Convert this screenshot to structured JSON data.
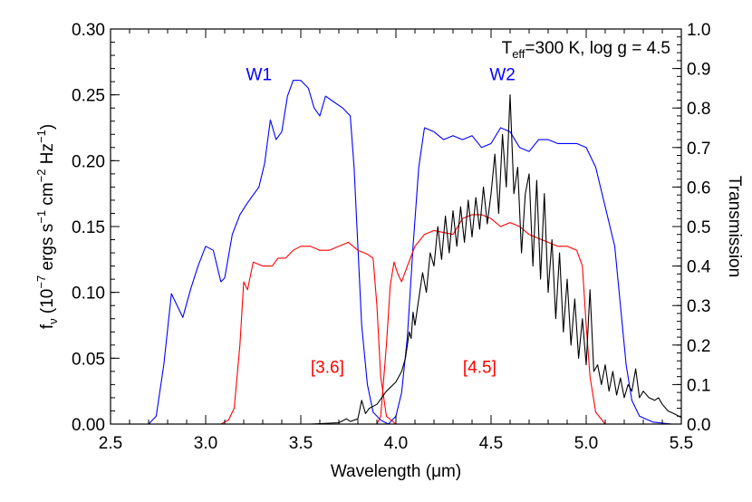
{
  "chart_data": {
    "type": "line",
    "title": "",
    "annotation": {
      "prefix": "T",
      "subscript": "eff",
      "rest": "=300 K, log g = 4.5"
    },
    "xlabel": "Wavelength (μm)",
    "ylabel": {
      "main": "f",
      "sub": "ν",
      "text": " (10",
      "exp1": "−7",
      "mid1": " ergs s",
      "exp2": "−1",
      "mid2": " cm",
      "exp3": "−2",
      "mid3": " Hz",
      "exp4": "−1",
      "end": ")"
    },
    "y2label": "Transmission",
    "xlim": [
      2.5,
      5.5
    ],
    "ylim": [
      0,
      0.3
    ],
    "y2lim": [
      0,
      1.0
    ],
    "x_ticks": [
      "2.5",
      "3.0",
      "3.5",
      "4.0",
      "4.5",
      "5.0",
      "5.5"
    ],
    "y_ticks": [
      "0.00",
      "0.05",
      "0.10",
      "0.15",
      "0.20",
      "0.25",
      "0.30"
    ],
    "y2_ticks": [
      "0.0",
      "0.1",
      "0.2",
      "0.3",
      "0.4",
      "0.5",
      "0.6",
      "0.7",
      "0.8",
      "0.9",
      "1.0"
    ],
    "grid": false,
    "colors": {
      "wise": "#0000ff",
      "irac": "#ff0000",
      "spectrum": "#000000"
    },
    "series": [
      {
        "name": "W1",
        "axis": "right",
        "color": "#0000ff",
        "label_at": [
          3.28,
          0.87
        ],
        "points": [
          [
            2.6,
            0
          ],
          [
            2.7,
            0
          ],
          [
            2.74,
            0.02
          ],
          [
            2.78,
            0.15
          ],
          [
            2.82,
            0.33
          ],
          [
            2.85,
            0.3
          ],
          [
            2.88,
            0.27
          ],
          [
            2.92,
            0.34
          ],
          [
            2.96,
            0.4
          ],
          [
            3.0,
            0.45
          ],
          [
            3.04,
            0.44
          ],
          [
            3.08,
            0.36
          ],
          [
            3.1,
            0.37
          ],
          [
            3.14,
            0.48
          ],
          [
            3.18,
            0.53
          ],
          [
            3.22,
            0.56
          ],
          [
            3.25,
            0.58
          ],
          [
            3.28,
            0.6
          ],
          [
            3.31,
            0.66
          ],
          [
            3.34,
            0.77
          ],
          [
            3.37,
            0.72
          ],
          [
            3.4,
            0.74
          ],
          [
            3.43,
            0.83
          ],
          [
            3.46,
            0.87
          ],
          [
            3.5,
            0.87
          ],
          [
            3.54,
            0.85
          ],
          [
            3.57,
            0.8
          ],
          [
            3.6,
            0.78
          ],
          [
            3.63,
            0.83
          ],
          [
            3.66,
            0.82
          ],
          [
            3.72,
            0.8
          ],
          [
            3.76,
            0.78
          ],
          [
            3.78,
            0.65
          ],
          [
            3.8,
            0.45
          ],
          [
            3.82,
            0.25
          ],
          [
            3.85,
            0.1
          ],
          [
            3.88,
            0.03
          ],
          [
            3.92,
            0.01
          ],
          [
            3.96,
            0
          ]
        ]
      },
      {
        "name": "W2",
        "axis": "right",
        "color": "#0000ff",
        "label_at": [
          4.56,
          0.87
        ],
        "points": [
          [
            3.96,
            0
          ],
          [
            4.0,
            0.02
          ],
          [
            4.03,
            0.08
          ],
          [
            4.06,
            0.22
          ],
          [
            4.09,
            0.45
          ],
          [
            4.12,
            0.65
          ],
          [
            4.15,
            0.75
          ],
          [
            4.2,
            0.74
          ],
          [
            4.25,
            0.72
          ],
          [
            4.3,
            0.73
          ],
          [
            4.35,
            0.72
          ],
          [
            4.4,
            0.73
          ],
          [
            4.45,
            0.7
          ],
          [
            4.5,
            0.71
          ],
          [
            4.55,
            0.75
          ],
          [
            4.6,
            0.74
          ],
          [
            4.65,
            0.7
          ],
          [
            4.7,
            0.69
          ],
          [
            4.75,
            0.72
          ],
          [
            4.8,
            0.72
          ],
          [
            4.85,
            0.71
          ],
          [
            4.9,
            0.71
          ],
          [
            4.95,
            0.71
          ],
          [
            5.0,
            0.7
          ],
          [
            5.05,
            0.65
          ],
          [
            5.1,
            0.55
          ],
          [
            5.15,
            0.45
          ],
          [
            5.18,
            0.3
          ],
          [
            5.21,
            0.15
          ],
          [
            5.24,
            0.06
          ],
          [
            5.28,
            0.02
          ],
          [
            5.35,
            0.005
          ],
          [
            5.45,
            0
          ]
        ]
      },
      {
        "name": "[3.6]",
        "axis": "right",
        "color": "#ff0000",
        "label_at": [
          3.64,
          0.13
        ],
        "points": [
          [
            3.0,
            0
          ],
          [
            3.08,
            0
          ],
          [
            3.12,
            0.01
          ],
          [
            3.15,
            0.04
          ],
          [
            3.18,
            0.2
          ],
          [
            3.2,
            0.36
          ],
          [
            3.22,
            0.34
          ],
          [
            3.25,
            0.41
          ],
          [
            3.3,
            0.4
          ],
          [
            3.35,
            0.4
          ],
          [
            3.38,
            0.42
          ],
          [
            3.42,
            0.42
          ],
          [
            3.46,
            0.44
          ],
          [
            3.5,
            0.45
          ],
          [
            3.55,
            0.45
          ],
          [
            3.6,
            0.44
          ],
          [
            3.65,
            0.44
          ],
          [
            3.7,
            0.45
          ],
          [
            3.75,
            0.46
          ],
          [
            3.8,
            0.44
          ],
          [
            3.85,
            0.43
          ],
          [
            3.88,
            0.42
          ],
          [
            3.9,
            0.3
          ],
          [
            3.92,
            0.12
          ],
          [
            3.95,
            0.02
          ],
          [
            4.0,
            0
          ]
        ]
      },
      {
        "name": "[4.5]",
        "axis": "right",
        "color": "#ff0000",
        "label_at": [
          4.44,
          0.13
        ],
        "points": [
          [
            3.9,
            0
          ],
          [
            3.92,
            0.02
          ],
          [
            3.95,
            0.2
          ],
          [
            3.97,
            0.35
          ],
          [
            3.99,
            0.41
          ],
          [
            4.01,
            0.38
          ],
          [
            4.03,
            0.36
          ],
          [
            4.06,
            0.4
          ],
          [
            4.1,
            0.45
          ],
          [
            4.15,
            0.48
          ],
          [
            4.2,
            0.49
          ],
          [
            4.3,
            0.48
          ],
          [
            4.35,
            0.52
          ],
          [
            4.4,
            0.53
          ],
          [
            4.45,
            0.53
          ],
          [
            4.5,
            0.52
          ],
          [
            4.55,
            0.5
          ],
          [
            4.6,
            0.51
          ],
          [
            4.65,
            0.5
          ],
          [
            4.7,
            0.48
          ],
          [
            4.75,
            0.47
          ],
          [
            4.8,
            0.46
          ],
          [
            4.85,
            0.45
          ],
          [
            4.9,
            0.45
          ],
          [
            4.95,
            0.44
          ],
          [
            4.98,
            0.4
          ],
          [
            5.0,
            0.25
          ],
          [
            5.02,
            0.12
          ],
          [
            5.05,
            0.03
          ],
          [
            5.1,
            0
          ]
        ]
      },
      {
        "name": "",
        "axis": "left",
        "color": "#000000",
        "label_at": null,
        "points": [
          [
            3.55,
            0
          ],
          [
            3.7,
            0.001
          ],
          [
            3.74,
            0.004
          ],
          [
            3.76,
            0.002
          ],
          [
            3.8,
            0.004
          ],
          [
            3.82,
            0.018
          ],
          [
            3.84,
            0.008
          ],
          [
            3.86,
            0.012
          ],
          [
            3.9,
            0.015
          ],
          [
            3.95,
            0.025
          ],
          [
            4.0,
            0.032
          ],
          [
            4.03,
            0.04
          ],
          [
            4.05,
            0.05
          ],
          [
            4.07,
            0.07
          ],
          [
            4.08,
            0.065
          ],
          [
            4.09,
            0.085
          ],
          [
            4.1,
            0.075
          ],
          [
            4.12,
            0.095
          ],
          [
            4.14,
            0.115
          ],
          [
            4.16,
            0.1
          ],
          [
            4.18,
            0.13
          ],
          [
            4.2,
            0.12
          ],
          [
            4.22,
            0.15
          ],
          [
            4.24,
            0.125
          ],
          [
            4.26,
            0.158
          ],
          [
            4.28,
            0.13
          ],
          [
            4.3,
            0.162
          ],
          [
            4.32,
            0.135
          ],
          [
            4.34,
            0.165
          ],
          [
            4.36,
            0.138
          ],
          [
            4.38,
            0.17
          ],
          [
            4.4,
            0.142
          ],
          [
            4.42,
            0.172
          ],
          [
            4.44,
            0.148
          ],
          [
            4.46,
            0.18
          ],
          [
            4.48,
            0.152
          ],
          [
            4.5,
            0.175
          ],
          [
            4.52,
            0.205
          ],
          [
            4.54,
            0.16
          ],
          [
            4.56,
            0.22
          ],
          [
            4.58,
            0.18
          ],
          [
            4.6,
            0.25
          ],
          [
            4.62,
            0.175
          ],
          [
            4.64,
            0.195
          ],
          [
            4.66,
            0.13
          ],
          [
            4.68,
            0.175
          ],
          [
            4.7,
            0.19
          ],
          [
            4.72,
            0.12
          ],
          [
            4.74,
            0.185
          ],
          [
            4.76,
            0.11
          ],
          [
            4.78,
            0.175
          ],
          [
            4.8,
            0.1
          ],
          [
            4.82,
            0.14
          ],
          [
            4.84,
            0.08
          ],
          [
            4.86,
            0.13
          ],
          [
            4.88,
            0.07
          ],
          [
            4.9,
            0.11
          ],
          [
            4.92,
            0.06
          ],
          [
            4.94,
            0.095
          ],
          [
            4.96,
            0.05
          ],
          [
            4.98,
            0.08
          ],
          [
            5.0,
            0.045
          ],
          [
            5.02,
            0.102
          ],
          [
            5.04,
            0.04
          ],
          [
            5.06,
            0.045
          ],
          [
            5.08,
            0.03
          ],
          [
            5.1,
            0.045
          ],
          [
            5.12,
            0.025
          ],
          [
            5.14,
            0.04
          ],
          [
            5.16,
            0.022
          ],
          [
            5.18,
            0.035
          ],
          [
            5.2,
            0.02
          ],
          [
            5.22,
            0.03
          ],
          [
            5.24,
            0.025
          ],
          [
            5.26,
            0.042
          ],
          [
            5.28,
            0.02
          ],
          [
            5.3,
            0.025
          ],
          [
            5.33,
            0.02
          ],
          [
            5.36,
            0.018
          ],
          [
            5.38,
            0.02
          ],
          [
            5.4,
            0.015
          ],
          [
            5.43,
            0.01
          ],
          [
            5.46,
            0.008
          ],
          [
            5.5,
            0.005
          ]
        ]
      }
    ]
  }
}
